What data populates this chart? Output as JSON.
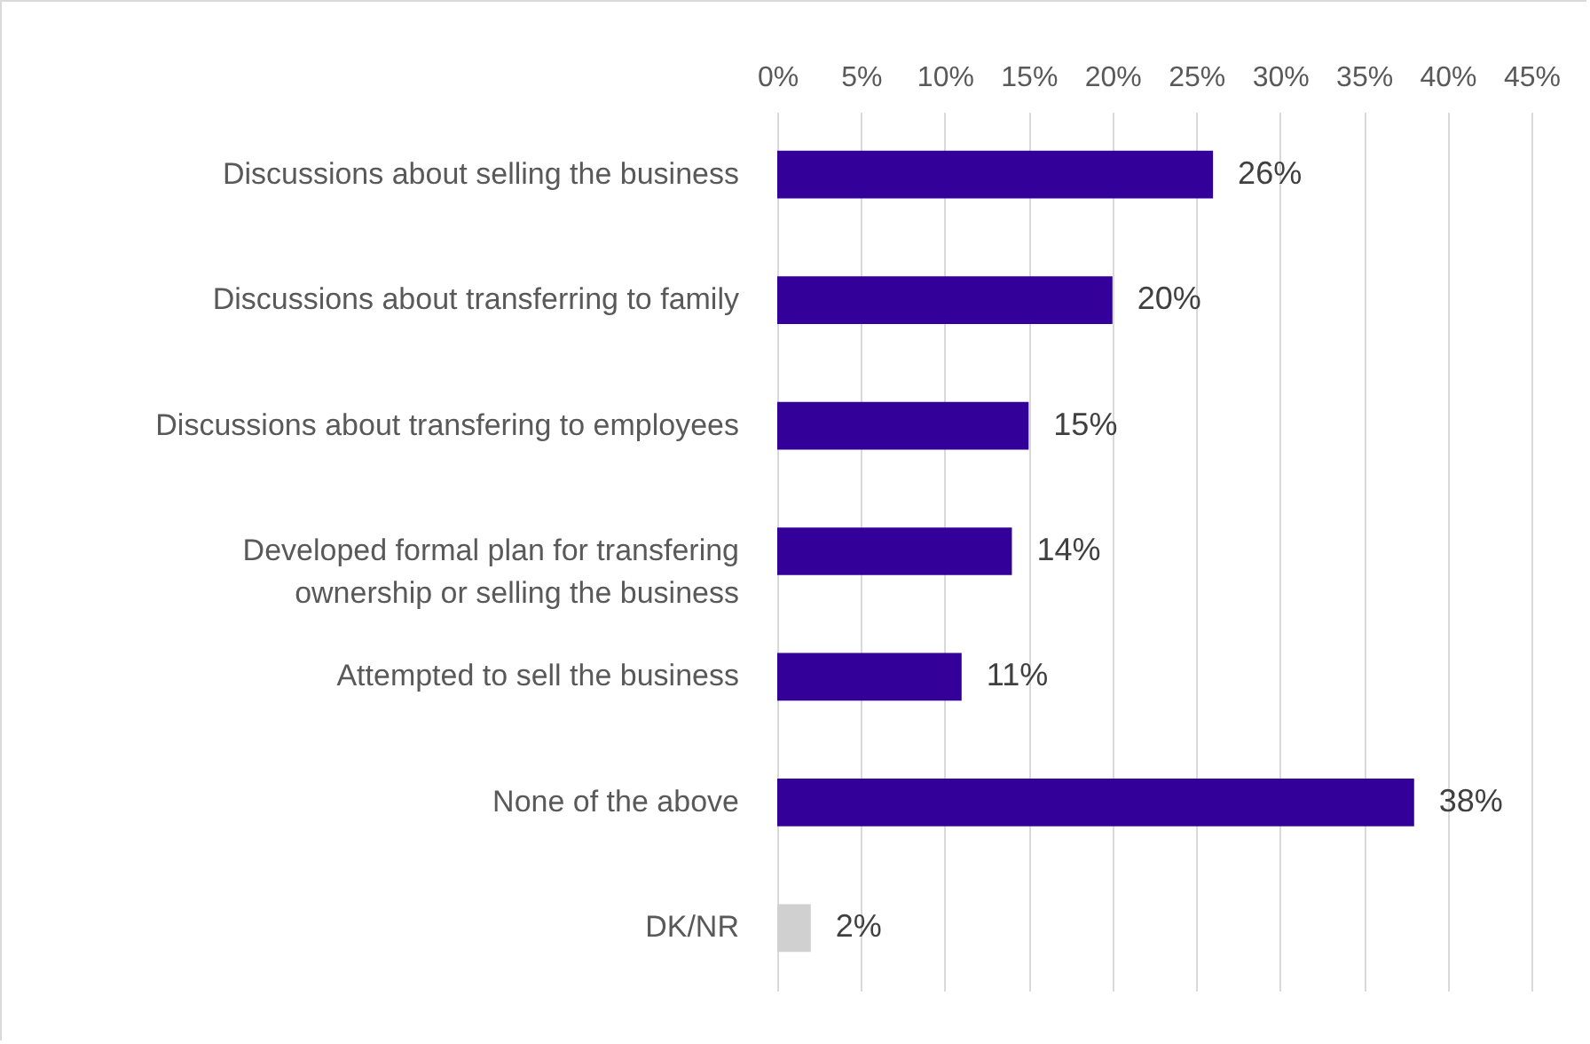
{
  "chart_data": {
    "type": "bar",
    "orientation": "horizontal",
    "categories": [
      "Discussions about selling the business",
      "Discussions about transferring to family",
      "Discussions about transfering to employees",
      "Developed formal plan for transfering ownership or selling the business",
      "Attempted to sell the business",
      "None of the above",
      "DK/NR"
    ],
    "values": [
      26,
      20,
      15,
      14,
      11,
      38,
      2
    ],
    "colors": [
      "#330099",
      "#330099",
      "#330099",
      "#330099",
      "#330099",
      "#330099",
      "#d0d0d0"
    ],
    "value_labels": [
      "26%",
      "20%",
      "15%",
      "14%",
      "11%",
      "38%",
      "2%"
    ],
    "xlim": [
      0,
      45
    ],
    "xticks": [
      {
        "value": 0,
        "label": "0%"
      },
      {
        "value": 5,
        "label": "5%"
      },
      {
        "value": 10,
        "label": "10%"
      },
      {
        "value": 15,
        "label": "15%"
      },
      {
        "value": 20,
        "label": "20%"
      },
      {
        "value": 25,
        "label": "25%"
      },
      {
        "value": 30,
        "label": "30%"
      },
      {
        "value": 35,
        "label": "35%"
      },
      {
        "value": 40,
        "label": "40%"
      },
      {
        "value": 45,
        "label": "45%"
      }
    ],
    "grid": "x"
  }
}
